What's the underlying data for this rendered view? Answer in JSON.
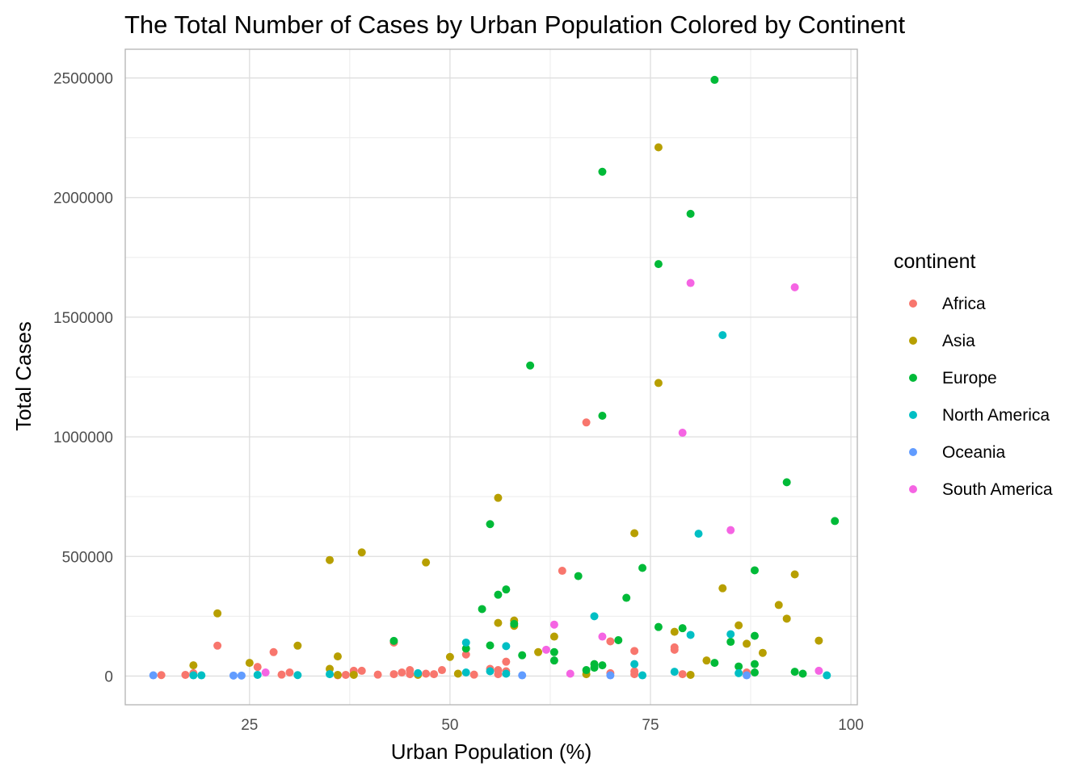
{
  "chart_data": {
    "type": "scatter",
    "title": "The Total Number of Cases by Urban Population Colored by Continent",
    "xlabel": "Urban Population (%)",
    "ylabel": "Total Cases",
    "xlim": [
      9.5,
      100.8
    ],
    "ylim": [
      -120000,
      2620000
    ],
    "x_ticks": [
      25,
      50,
      75,
      100
    ],
    "x_tick_labels": [
      "25",
      "50",
      "75",
      "100"
    ],
    "x_minor_ticks": [
      37.5,
      62.5,
      87.5
    ],
    "y_ticks": [
      0,
      500000,
      1000000,
      1500000,
      2000000,
      2500000
    ],
    "y_tick_labels": [
      "0",
      "500000",
      "1000000",
      "1500000",
      "2000000",
      "2500000"
    ],
    "y_minor_ticks": [
      250000,
      750000,
      1250000,
      1750000,
      2250000
    ],
    "grid": true,
    "legend": {
      "title": "continent",
      "position": "right"
    },
    "series": [
      {
        "name": "Africa",
        "color": "#F8766D",
        "points": [
          [
            14,
            4000
          ],
          [
            17,
            5000
          ],
          [
            18,
            12000
          ],
          [
            21,
            127000
          ],
          [
            26,
            38000
          ],
          [
            28,
            100000
          ],
          [
            29,
            6000
          ],
          [
            30,
            15000
          ],
          [
            36,
            3000
          ],
          [
            37,
            5000
          ],
          [
            38,
            22000
          ],
          [
            38,
            10000
          ],
          [
            39,
            22000
          ],
          [
            41,
            6000
          ],
          [
            43,
            8000
          ],
          [
            43,
            140000
          ],
          [
            44,
            15000
          ],
          [
            45,
            25000
          ],
          [
            45,
            8000
          ],
          [
            46,
            10000
          ],
          [
            47,
            10000
          ],
          [
            48,
            8000
          ],
          [
            49,
            25000
          ],
          [
            52,
            90000
          ],
          [
            53,
            6000
          ],
          [
            55,
            30000
          ],
          [
            56,
            25000
          ],
          [
            56,
            8000
          ],
          [
            57,
            60000
          ],
          [
            57,
            20000
          ],
          [
            64,
            440000
          ],
          [
            67,
            1060000
          ],
          [
            70,
            145000
          ],
          [
            70,
            12000
          ],
          [
            73,
            105000
          ],
          [
            73,
            20000
          ],
          [
            73,
            8000
          ],
          [
            78,
            110000
          ],
          [
            78,
            120000
          ],
          [
            79,
            8000
          ],
          [
            87,
            15000
          ],
          [
            87,
            8000
          ]
        ]
      },
      {
        "name": "Asia",
        "color": "#B79F00",
        "points": [
          [
            18,
            45000
          ],
          [
            21,
            262000
          ],
          [
            25,
            55000
          ],
          [
            31,
            127000
          ],
          [
            35,
            485000
          ],
          [
            35,
            30000
          ],
          [
            36,
            82000
          ],
          [
            36,
            5000
          ],
          [
            38,
            5000
          ],
          [
            39,
            517000
          ],
          [
            46,
            5000
          ],
          [
            47,
            475000
          ],
          [
            50,
            80000
          ],
          [
            51,
            10000
          ],
          [
            56,
            745000
          ],
          [
            56,
            222000
          ],
          [
            58,
            232000
          ],
          [
            58,
            210000
          ],
          [
            61,
            100000
          ],
          [
            63,
            165000
          ],
          [
            67,
            8000
          ],
          [
            73,
            597000
          ],
          [
            76,
            2210000
          ],
          [
            76,
            1225000
          ],
          [
            78,
            185000
          ],
          [
            80,
            5000
          ],
          [
            82,
            65000
          ],
          [
            84,
            367000
          ],
          [
            86,
            212000
          ],
          [
            87,
            135000
          ],
          [
            89,
            97000
          ],
          [
            91,
            297000
          ],
          [
            92,
            240000
          ],
          [
            93,
            425000
          ],
          [
            96,
            148000
          ]
        ]
      },
      {
        "name": "Europe",
        "color": "#00BA38",
        "points": [
          [
            43,
            147000
          ],
          [
            52,
            115000
          ],
          [
            54,
            280000
          ],
          [
            55,
            635000
          ],
          [
            55,
            128000
          ],
          [
            56,
            340000
          ],
          [
            57,
            362000
          ],
          [
            58,
            218000
          ],
          [
            59,
            87000
          ],
          [
            60,
            1298000
          ],
          [
            63,
            100000
          ],
          [
            63,
            65000
          ],
          [
            66,
            418000
          ],
          [
            67,
            25000
          ],
          [
            68,
            50000
          ],
          [
            68,
            35000
          ],
          [
            69,
            2108000
          ],
          [
            69,
            1088000
          ],
          [
            69,
            45000
          ],
          [
            71,
            150000
          ],
          [
            72,
            327000
          ],
          [
            74,
            452000
          ],
          [
            76,
            1722000
          ],
          [
            76,
            205000
          ],
          [
            79,
            200000
          ],
          [
            80,
            1932000
          ],
          [
            83,
            2492000
          ],
          [
            83,
            55000
          ],
          [
            85,
            143000
          ],
          [
            86,
            40000
          ],
          [
            88,
            442000
          ],
          [
            88,
            168000
          ],
          [
            88,
            50000
          ],
          [
            88,
            15000
          ],
          [
            92,
            810000
          ],
          [
            93,
            18000
          ],
          [
            94,
            10000
          ],
          [
            98,
            648000
          ]
        ]
      },
      {
        "name": "North America",
        "color": "#00BFC4",
        "points": [
          [
            18,
            3000
          ],
          [
            19,
            3000
          ],
          [
            26,
            5000
          ],
          [
            31,
            4000
          ],
          [
            35,
            8000
          ],
          [
            46,
            12000
          ],
          [
            52,
            140000
          ],
          [
            52,
            15000
          ],
          [
            55,
            20000
          ],
          [
            57,
            125000
          ],
          [
            57,
            10000
          ],
          [
            68,
            250000
          ],
          [
            73,
            50000
          ],
          [
            74,
            3000
          ],
          [
            78,
            18000
          ],
          [
            80,
            172000
          ],
          [
            81,
            595000
          ],
          [
            84,
            1425000
          ],
          [
            85,
            175000
          ],
          [
            86,
            12000
          ],
          [
            97,
            3000
          ]
        ]
      },
      {
        "name": "Oceania",
        "color": "#619CFF",
        "points": [
          [
            13,
            3000
          ],
          [
            23,
            2000
          ],
          [
            24,
            2000
          ],
          [
            59,
            3000
          ],
          [
            70,
            3000
          ],
          [
            87,
            3000
          ]
        ]
      },
      {
        "name": "South America",
        "color": "#F564E3",
        "points": [
          [
            27,
            15000
          ],
          [
            62,
            110000
          ],
          [
            63,
            215000
          ],
          [
            65,
            10000
          ],
          [
            69,
            165000
          ],
          [
            79,
            1017000
          ],
          [
            80,
            1643000
          ],
          [
            85,
            610000
          ],
          [
            93,
            1625000
          ],
          [
            96,
            22000
          ]
        ]
      }
    ]
  }
}
